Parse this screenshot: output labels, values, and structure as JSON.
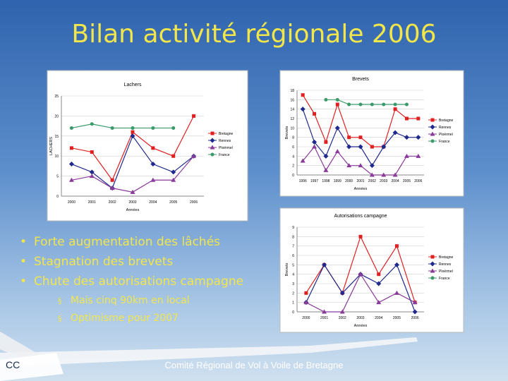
{
  "slide": {
    "title": "Bilan activité régionale 2006",
    "bullets": [
      "Forte augmentation des lâchés",
      "Stagnation des brevets",
      "Chute des autorisations campagne"
    ],
    "sub_bullets": [
      "Mais cinq 90km en local",
      "Optimisme pour 2007"
    ],
    "footer": "Comité Régional de Vol à Voile de Bretagne"
  },
  "chart_data": [
    {
      "type": "line",
      "title": "Lachers",
      "y_label": "LACHERS",
      "x_label": "Années",
      "categories": [
        "2000",
        "2001",
        "2002",
        "2003",
        "2004",
        "2005",
        "2006"
      ],
      "ylim": [
        0,
        25
      ],
      "yticks": [
        0,
        5,
        10,
        15,
        20,
        25
      ],
      "legend": "right",
      "series": [
        {
          "name": "Bretagne",
          "color": "#e02020",
          "marker": "square",
          "values": [
            12,
            11,
            4,
            16,
            12,
            10,
            20
          ]
        },
        {
          "name": "Rennes",
          "color": "#1f2a8c",
          "marker": "diamond",
          "values": [
            8,
            6,
            2,
            15,
            8,
            6,
            10
          ]
        },
        {
          "name": "Ploërmel",
          "color": "#8a3a9a",
          "marker": "triangle",
          "values": [
            4,
            5,
            2,
            1,
            4,
            4,
            10
          ]
        },
        {
          "name": "France",
          "color": "#3a9a6a",
          "marker": "circle",
          "values": [
            17,
            18,
            17,
            17,
            17,
            17,
            null
          ]
        }
      ]
    },
    {
      "type": "line",
      "title": "Brevets",
      "y_label": "Brevets",
      "x_label": "Années",
      "categories": [
        "1996",
        "1997",
        "1998",
        "1999",
        "2000",
        "2001",
        "2002",
        "2003",
        "2004",
        "2005",
        "2006"
      ],
      "ylim": [
        0,
        18
      ],
      "yticks": [
        0,
        2,
        4,
        6,
        8,
        10,
        12,
        14,
        16,
        18
      ],
      "legend": "right",
      "series": [
        {
          "name": "Bretagne",
          "color": "#e02020",
          "marker": "square",
          "values": [
            17,
            13,
            7,
            15,
            8,
            8,
            6,
            6,
            14,
            12,
            12
          ]
        },
        {
          "name": "Rennes",
          "color": "#1f2a8c",
          "marker": "diamond",
          "values": [
            14,
            7,
            4,
            10,
            6,
            6,
            2,
            6,
            9,
            8,
            8
          ]
        },
        {
          "name": "Ploërmel",
          "color": "#8a3a9a",
          "marker": "triangle",
          "values": [
            3,
            6,
            1,
            5,
            2,
            2,
            0,
            0,
            0,
            4,
            4
          ]
        },
        {
          "name": "France",
          "color": "#3a9a6a",
          "marker": "circle",
          "values": [
            null,
            null,
            16,
            16,
            15,
            15,
            15,
            15,
            15,
            15,
            null
          ]
        }
      ]
    },
    {
      "type": "line",
      "title": "Autorisations campagne",
      "y_label": "Brevets",
      "x_label": "Années",
      "categories": [
        "2000",
        "2001",
        "2002",
        "2003",
        "2004",
        "2005",
        "2006"
      ],
      "ylim": [
        0,
        9
      ],
      "yticks": [
        0,
        1,
        2,
        3,
        4,
        5,
        6,
        7,
        8,
        9
      ],
      "legend": "right",
      "series": [
        {
          "name": "Bretagne",
          "color": "#e02020",
          "marker": "square",
          "values": [
            2,
            5,
            2,
            8,
            4,
            7,
            1
          ]
        },
        {
          "name": "Rennes",
          "color": "#1f2a8c",
          "marker": "diamond",
          "values": [
            1,
            5,
            2,
            4,
            3,
            5,
            0
          ]
        },
        {
          "name": "Ploërmel",
          "color": "#8a3a9a",
          "marker": "triangle",
          "values": [
            1,
            0,
            0,
            4,
            1,
            2,
            1
          ]
        },
        {
          "name": "France",
          "color": "#3a9a6a",
          "marker": "circle",
          "values": [
            null,
            null,
            null,
            null,
            null,
            null,
            null
          ]
        }
      ]
    }
  ]
}
